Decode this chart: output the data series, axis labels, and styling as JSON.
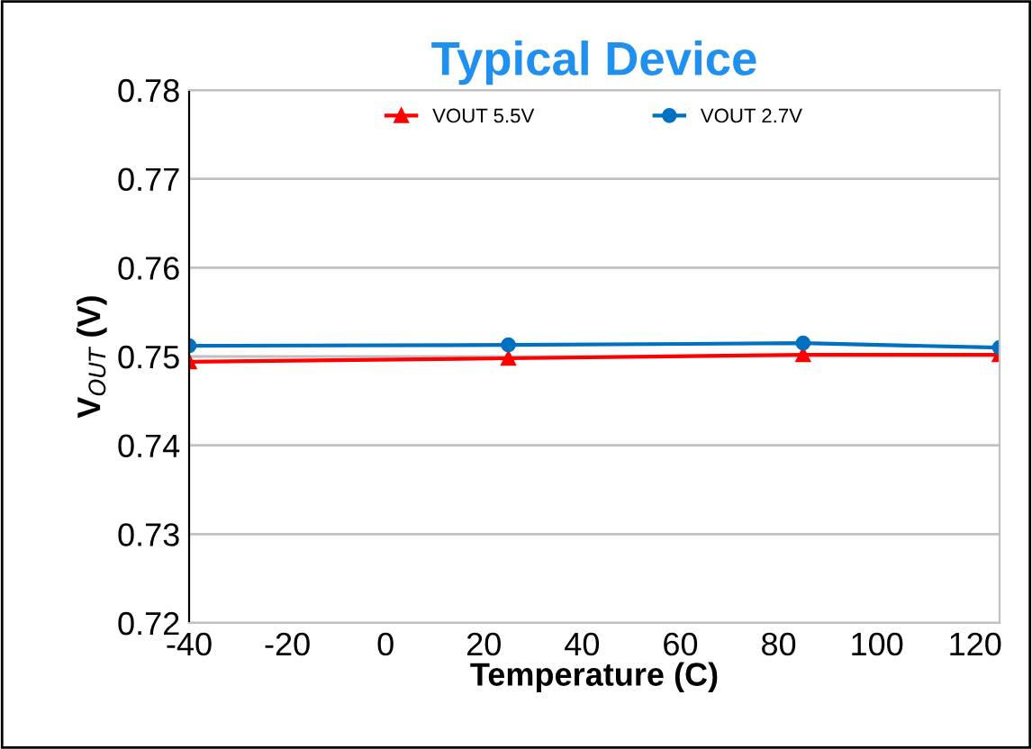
{
  "chart_data": {
    "type": "line",
    "title": "Typical Device",
    "xlabel": "Temperature (C)",
    "ylabel": "V$_{OUT}$ (V)",
    "x": [
      -40,
      25,
      85,
      125
    ],
    "series": [
      {
        "name": "VOUT 5.5V",
        "color": "#ff0000",
        "values": [
          0.7494,
          0.7498,
          0.7502,
          0.7502
        ],
        "marker": "triangle"
      },
      {
        "name": "VOUT 2.7V",
        "color": "#0070c0",
        "values": [
          0.7512,
          0.7513,
          0.7515,
          0.751
        ],
        "marker": "circle"
      }
    ],
    "xlim": [
      -40,
      125
    ],
    "xticks": [
      -40,
      -20,
      0,
      20,
      40,
      60,
      80,
      100,
      120
    ],
    "ylim": [
      0.72,
      0.78
    ],
    "yticks": [
      0.72,
      0.73,
      0.74,
      0.75,
      0.76,
      0.77,
      0.78
    ],
    "grid": "y",
    "legend": "top",
    "line_style": "solid"
  }
}
